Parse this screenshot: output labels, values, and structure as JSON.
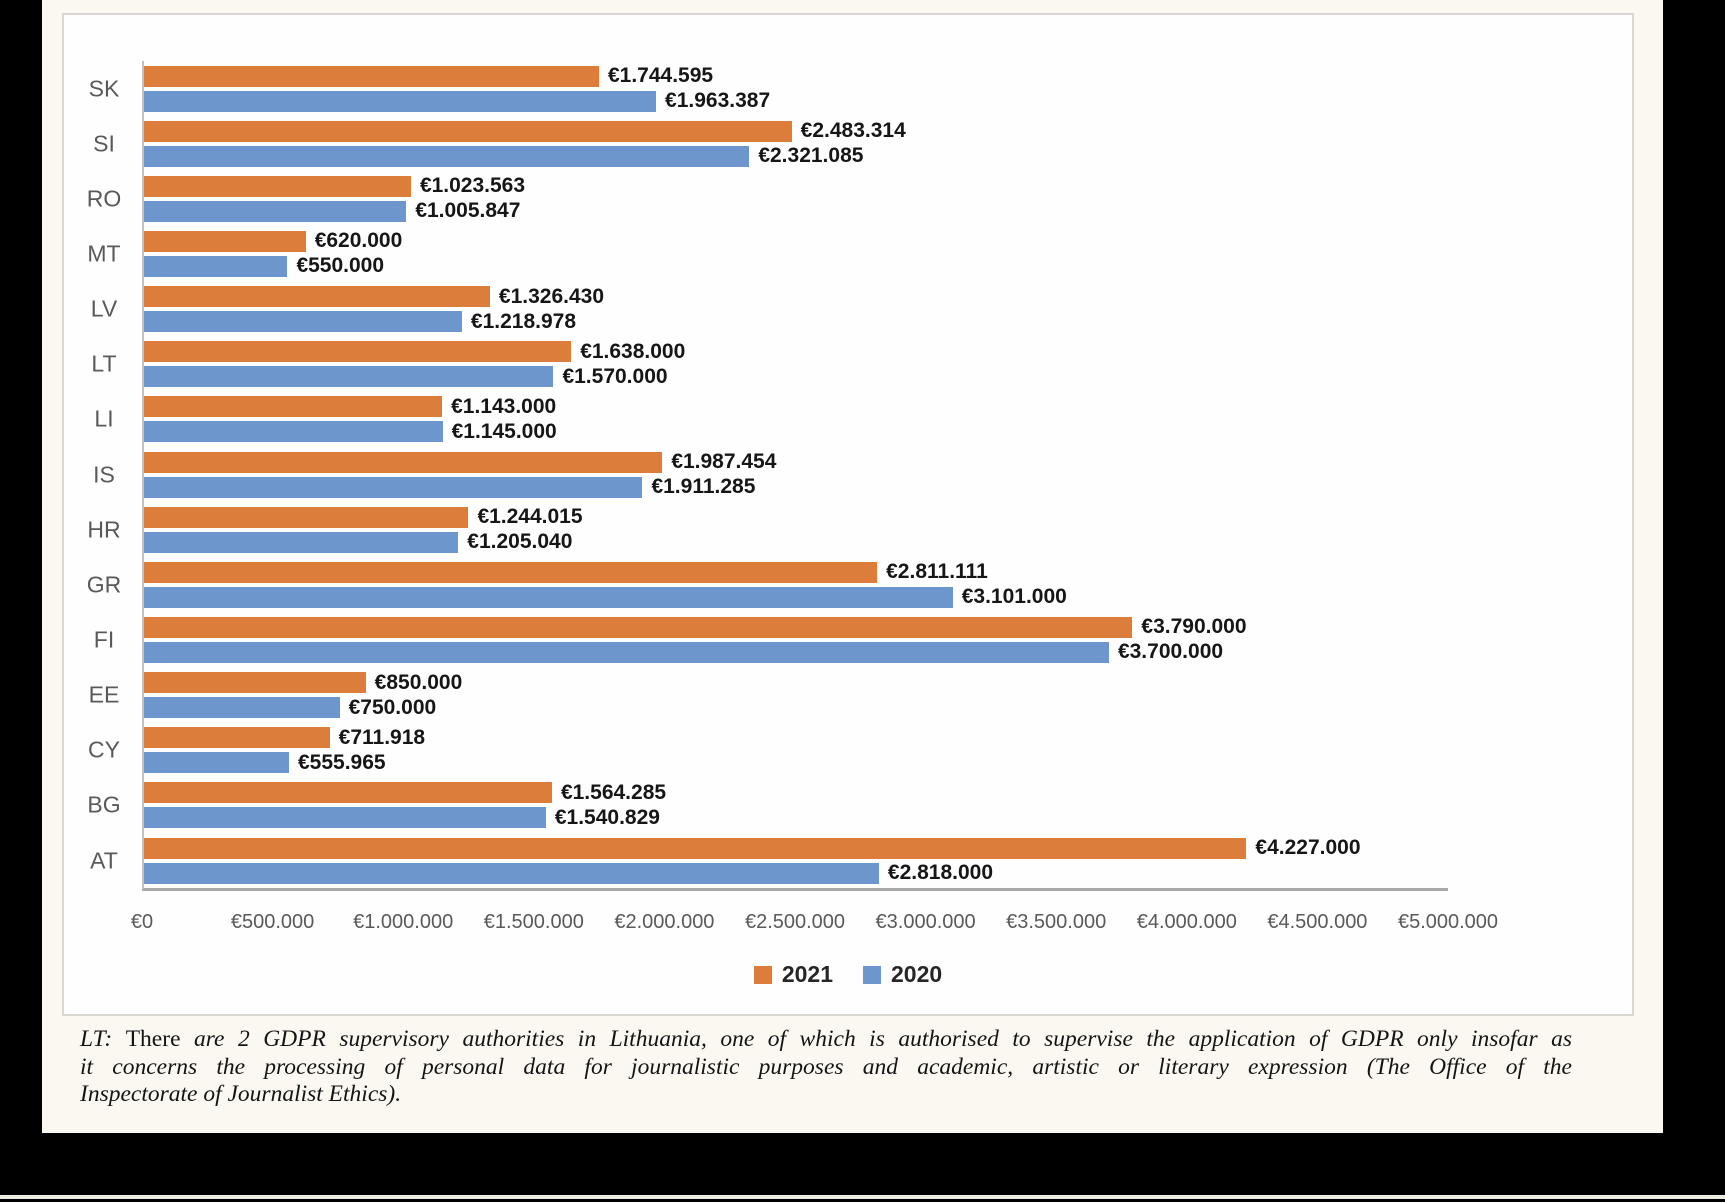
{
  "page": {
    "footnote": {
      "label": "LT:",
      "upright": "There",
      "line1_rest": "are 2 GDPR supervisory authorities in Lithuania, one of which is authorised to supervise the application of GDPR only insofar as",
      "line2": "it concerns the processing of personal data for journalistic purposes and academic, artistic or literary expression (The Office of the",
      "line3": "Inspectorate of Journalist Ethics)."
    }
  },
  "chart_data": {
    "type": "bar",
    "orientation": "horizontal",
    "title": "",
    "xlabel": "",
    "ylabel": "",
    "grid": false,
    "xlim": [
      0,
      5000000
    ],
    "categories": [
      "SK",
      "SI",
      "RO",
      "MT",
      "LV",
      "LT",
      "LI",
      "IS",
      "HR",
      "GR",
      "FI",
      "EE",
      "CY",
      "BG",
      "AT"
    ],
    "series": [
      {
        "name": "2021",
        "color": "#dd7d3c",
        "values": [
          1744595,
          2483314,
          1023563,
          620000,
          1326430,
          1638000,
          1143000,
          1987454,
          1244015,
          2811111,
          3790000,
          850000,
          711918,
          1564285,
          4227000
        ],
        "labels": [
          "€1.744.595",
          "€2.483.314",
          "€1.023.563",
          "€620.000",
          "€1.326.430",
          "€1.638.000",
          "€1.143.000",
          "€1.987.454",
          "€1.244.015",
          "€2.811.111",
          "€3.790.000",
          "€850.000",
          "€711.918",
          "€1.564.285",
          "€4.227.000"
        ]
      },
      {
        "name": "2020",
        "color": "#6d96cc",
        "values": [
          1963387,
          2321085,
          1005847,
          550000,
          1218978,
          1570000,
          1145000,
          1911285,
          1205040,
          3101000,
          3700000,
          750000,
          555965,
          1540829,
          2818000
        ],
        "labels": [
          "€1.963.387",
          "€2.321.085",
          "€1.005.847",
          "€550.000",
          "€1.218.978",
          "€1.570.000",
          "€1.145.000",
          "€1.911.285",
          "€1.205.040",
          "€3.101.000",
          "€3.700.000",
          "€750.000",
          "€555.965",
          "€1.540.829",
          "€2.818.000"
        ]
      }
    ],
    "x_ticks": [
      "€0",
      "€500.000",
      "€1.000.000",
      "€1.500.000",
      "€2.000.000",
      "€2.500.000",
      "€3.000.000",
      "€3.500.000",
      "€4.000.000",
      "€4.500.000",
      "€5.000.000"
    ],
    "legend": {
      "position": "bottom",
      "entries": [
        "2021",
        "2020"
      ]
    }
  }
}
